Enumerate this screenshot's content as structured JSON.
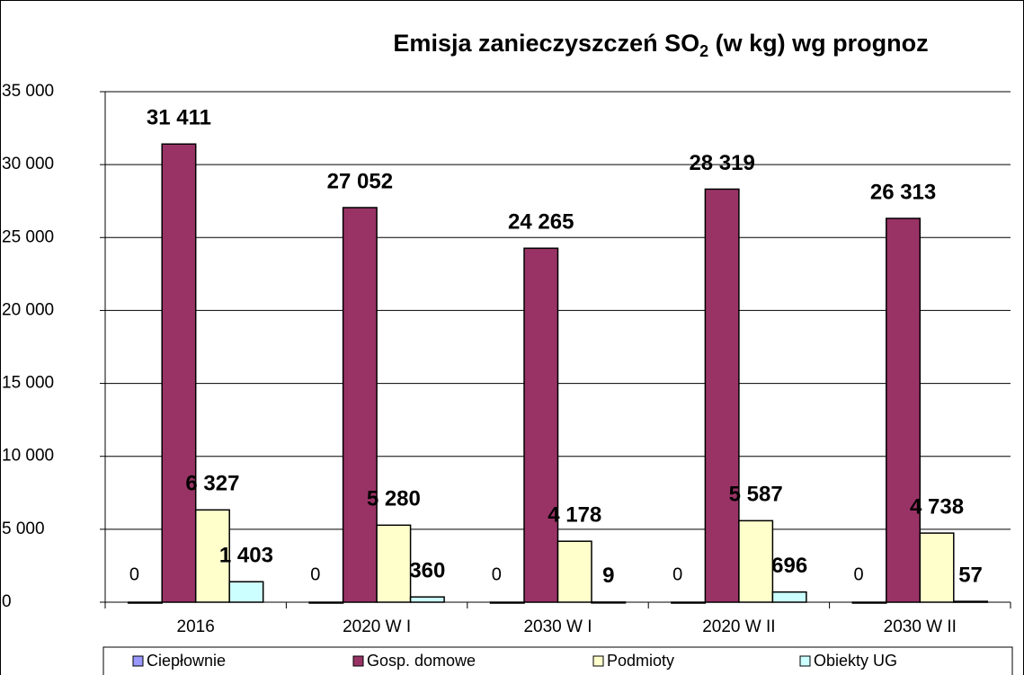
{
  "chart_data": {
    "type": "bar",
    "title": [
      "Emisja zanieczyszczeń SO",
      "2",
      " (w kg) wg prognoz"
    ],
    "categories": [
      "2016",
      "2020 W I",
      "2030 W I",
      "2020 W II",
      "2030 W II"
    ],
    "series": [
      {
        "name": "Ciepłownie",
        "color": "#9999ff",
        "values": [
          0,
          0,
          0,
          0,
          0
        ]
      },
      {
        "name": "Gosp. domowe",
        "color": "#993366",
        "values": [
          31411,
          27052,
          24265,
          28319,
          26313
        ],
        "value_labels": [
          "31 411",
          "27 052",
          "24 265",
          "28 319",
          "26 313"
        ]
      },
      {
        "name": "Podmioty",
        "color": "#ffffcc",
        "values": [
          6327,
          5280,
          4178,
          5587,
          4738
        ],
        "value_labels": [
          "6 327",
          "5 280",
          "4 178",
          "5 587",
          "4 738"
        ]
      },
      {
        "name": "Obiekty UG",
        "color": "#ccffff",
        "values": [
          1403,
          360,
          9,
          696,
          57
        ],
        "value_labels": [
          "1 403",
          "360",
          "9",
          "696",
          "57"
        ]
      }
    ],
    "ylim": [
      0,
      35000
    ],
    "yticks": [
      0,
      {
        "value": 5000,
        "label": "5 000"
      },
      {
        "value": 10000,
        "label": "10 000"
      },
      {
        "value": 15000,
        "label": "15 000"
      },
      {
        "value": 20000,
        "label": "20 000"
      },
      {
        "value": 25000,
        "label": "25 000"
      },
      {
        "value": 30000,
        "label": "30 000"
      },
      {
        "value": 35000,
        "label": "35 000"
      }
    ],
    "grid": true,
    "legend": "bottom"
  }
}
